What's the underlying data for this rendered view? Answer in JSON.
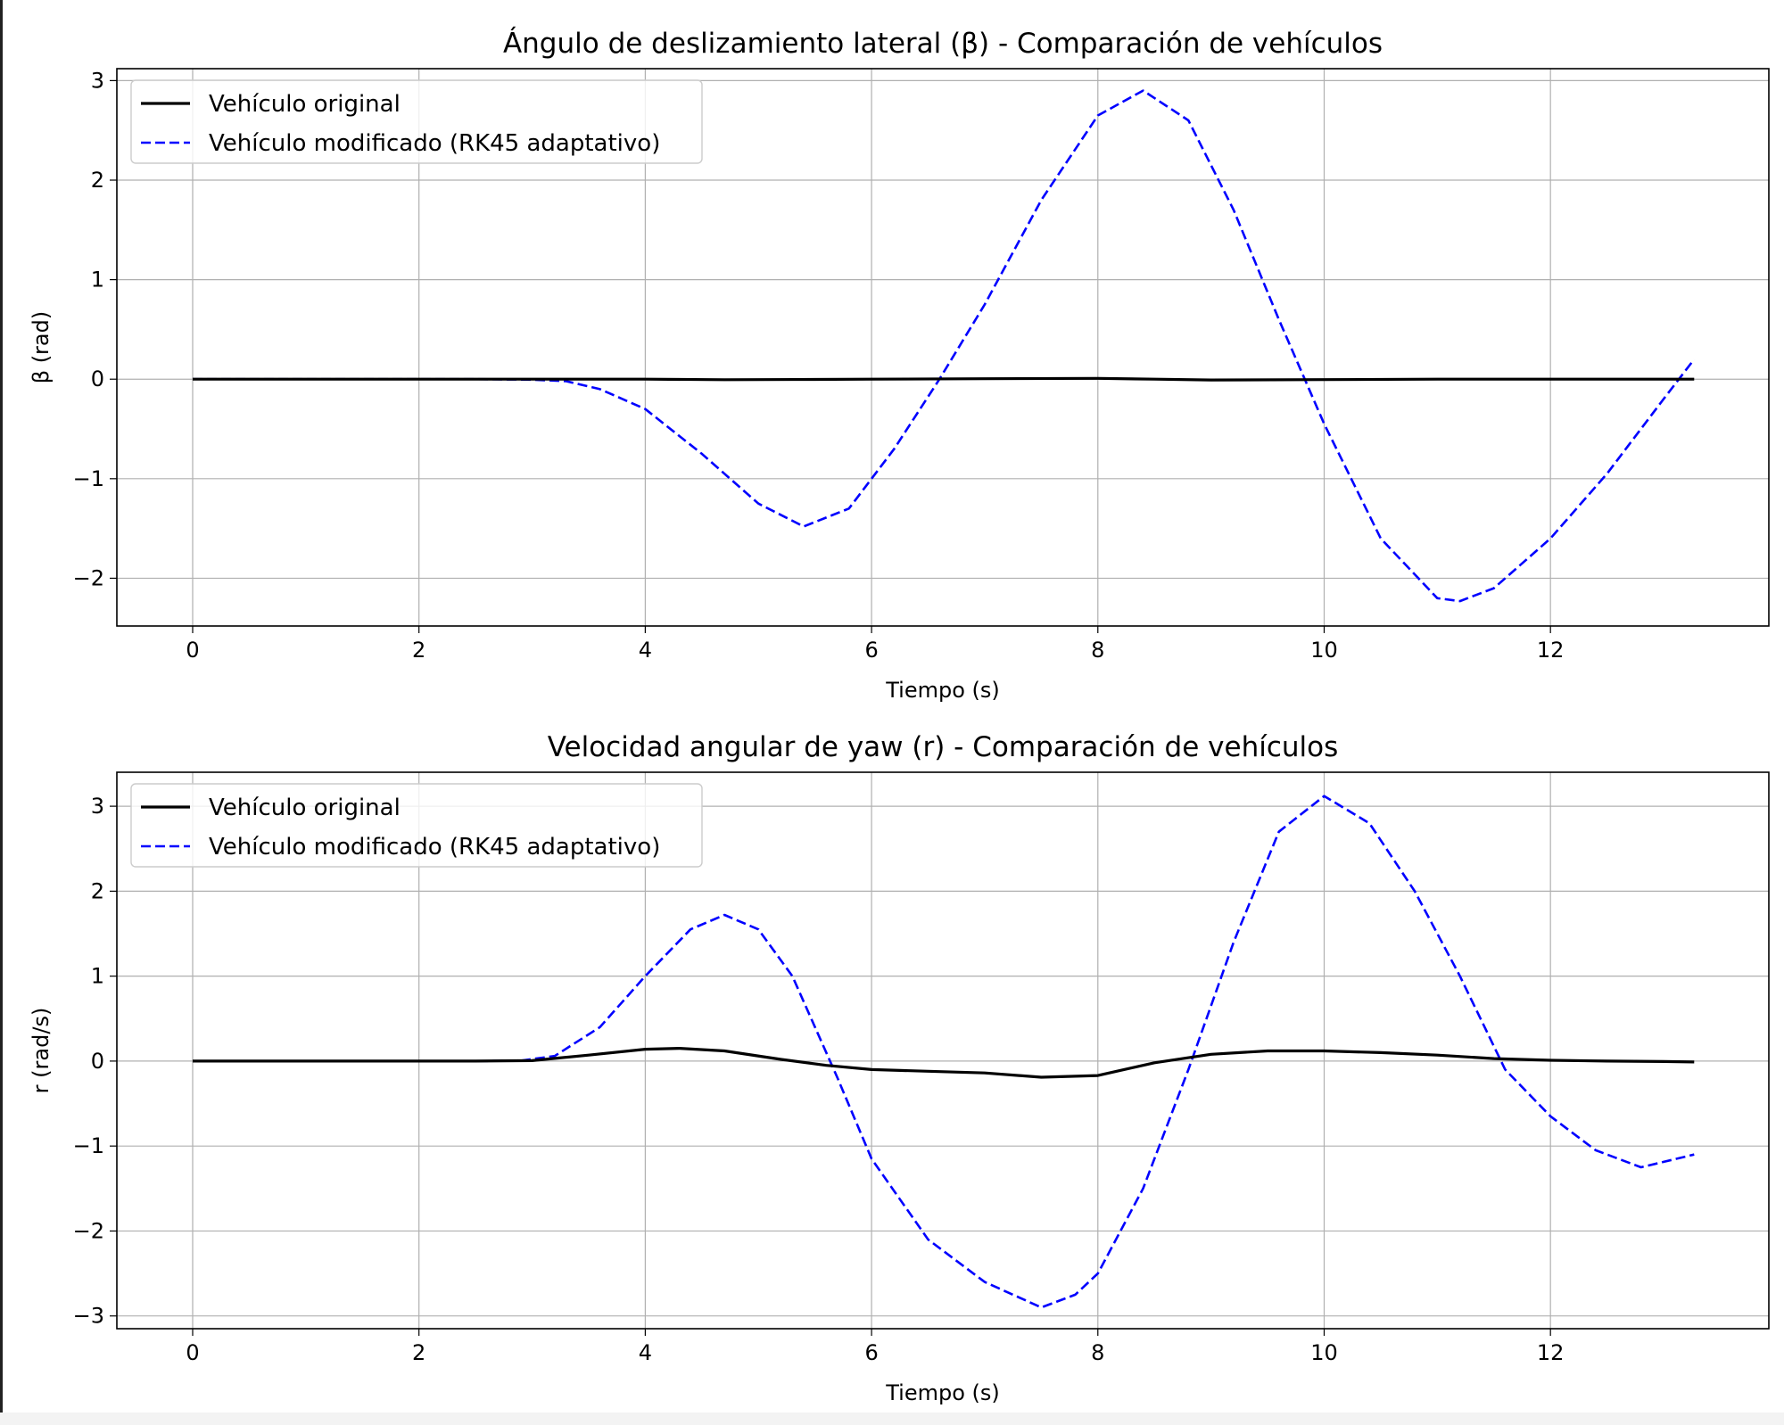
{
  "chart_data": [
    {
      "type": "line",
      "title": "Ángulo de deslizamiento lateral (β) - Comparación de vehículos",
      "xlabel": "Tiempo (s)",
      "ylabel": "β (rad)",
      "xlim": [
        -0.67,
        13.93
      ],
      "ylim": [
        -2.48,
        3.12
      ],
      "xticks": [
        0,
        2,
        4,
        6,
        8,
        10,
        12
      ],
      "yticks": [
        -2,
        -1,
        0,
        1,
        2,
        3
      ],
      "grid": true,
      "legend": "upper-left",
      "series": [
        {
          "name": "Vehículo original",
          "color": "#000000",
          "style": "solid",
          "x": [
            0,
            2,
            3,
            4,
            4.7,
            5.5,
            6,
            7,
            8,
            8.5,
            9,
            10,
            11,
            12,
            13.27
          ],
          "y": [
            0,
            0,
            0,
            0,
            -0.005,
            -0.003,
            0,
            0.005,
            0.008,
            0.0,
            -0.008,
            -0.004,
            0,
            0,
            0
          ]
        },
        {
          "name": "Vehículo modificado (RK45 adaptativo)",
          "color": "#0000ff",
          "style": "dashed",
          "x": [
            0,
            2.5,
            3.0,
            3.3,
            3.6,
            4.0,
            4.5,
            5.0,
            5.4,
            5.8,
            6.2,
            6.6,
            7.0,
            7.5,
            8.0,
            8.4,
            8.8,
            9.2,
            9.6,
            10.0,
            10.5,
            11.0,
            11.2,
            11.5,
            12.0,
            12.5,
            13.0,
            13.27
          ],
          "y": [
            0,
            0,
            -0.005,
            -0.02,
            -0.1,
            -0.3,
            -0.75,
            -1.25,
            -1.48,
            -1.3,
            -0.7,
            0.0,
            0.75,
            1.8,
            2.65,
            2.9,
            2.6,
            1.7,
            0.6,
            -0.45,
            -1.6,
            -2.2,
            -2.23,
            -2.1,
            -1.6,
            -0.95,
            -0.2,
            0.2
          ]
        }
      ]
    },
    {
      "type": "line",
      "title": "Velocidad angular de yaw (r) - Comparación de vehículos",
      "xlabel": "Tiempo (s)",
      "ylabel": "r (rad/s)",
      "xlim": [
        -0.67,
        13.93
      ],
      "ylim": [
        -3.15,
        3.4
      ],
      "xticks": [
        0,
        2,
        4,
        6,
        8,
        10,
        12
      ],
      "yticks": [
        -3,
        -2,
        -1,
        0,
        1,
        2,
        3
      ],
      "grid": true,
      "legend": "upper-left",
      "series": [
        {
          "name": "Vehículo original",
          "color": "#000000",
          "style": "solid",
          "x": [
            0,
            2.5,
            3.0,
            3.5,
            4.0,
            4.3,
            4.7,
            5.2,
            5.6,
            6.0,
            6.5,
            7.0,
            7.5,
            8.0,
            8.5,
            9.0,
            9.5,
            10.0,
            10.5,
            11.0,
            11.5,
            12.0,
            12.5,
            13.0,
            13.27
          ],
          "y": [
            0,
            0,
            0.005,
            0.07,
            0.14,
            0.15,
            0.12,
            0.02,
            -0.05,
            -0.1,
            -0.12,
            -0.14,
            -0.19,
            -0.17,
            -0.02,
            0.08,
            0.12,
            0.12,
            0.1,
            0.07,
            0.03,
            0.01,
            0,
            -0.005,
            -0.01
          ]
        },
        {
          "name": "Vehículo modificado (RK45 adaptativo)",
          "color": "#0000ff",
          "style": "dashed",
          "x": [
            0,
            2.5,
            2.9,
            3.2,
            3.6,
            4.0,
            4.4,
            4.7,
            5.0,
            5.3,
            5.7,
            6.0,
            6.5,
            7.0,
            7.5,
            7.8,
            8.0,
            8.4,
            8.8,
            9.2,
            9.6,
            10.0,
            10.4,
            10.8,
            11.2,
            11.6,
            12.0,
            12.4,
            12.8,
            13.27
          ],
          "y": [
            0,
            0,
            0.005,
            0.06,
            0.4,
            1.0,
            1.55,
            1.72,
            1.55,
            1.0,
            -0.2,
            -1.15,
            -2.1,
            -2.6,
            -2.9,
            -2.75,
            -2.5,
            -1.5,
            -0.1,
            1.4,
            2.7,
            3.12,
            2.8,
            2.0,
            1.0,
            -0.1,
            -0.65,
            -1.05,
            -1.25,
            -1.1
          ]
        }
      ]
    }
  ]
}
